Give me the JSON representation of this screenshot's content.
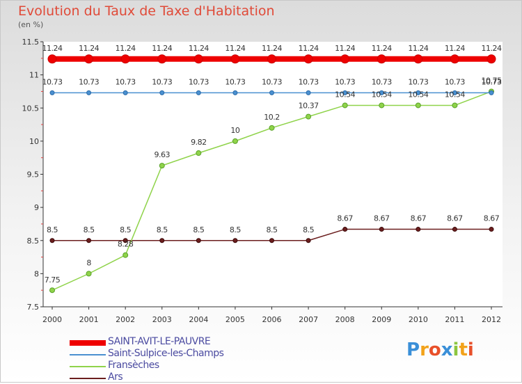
{
  "header": {
    "title": "Evolution du Taux de Taxe d'Habitation",
    "subtitle": "(en %)"
  },
  "brand": {
    "letters": [
      {
        "char": "P",
        "color": "#3a8fd8"
      },
      {
        "char": "r",
        "color": "#f2a21a"
      },
      {
        "char": "o",
        "color": "#e8502a"
      },
      {
        "char": "x",
        "color": "#3a8fd8"
      },
      {
        "char": "i",
        "color": "#8cc63f"
      },
      {
        "char": "t",
        "color": "#f2a21a"
      },
      {
        "char": "i",
        "color": "#e8502a"
      }
    ]
  },
  "chart_data": {
    "type": "line",
    "title": "Evolution du Taux de Taxe d'Habitation",
    "ylabel": "(en %)",
    "xlabel": "",
    "categories": [
      "2000",
      "2001",
      "2002",
      "2003",
      "2004",
      "2005",
      "2006",
      "2007",
      "2008",
      "2009",
      "2010",
      "2011",
      "2012"
    ],
    "ylim": [
      7.5,
      11.5
    ],
    "yticks": [
      "7.5",
      "8",
      "8.5",
      "9",
      "9.5",
      "10",
      "10.5",
      "11",
      "11.5"
    ],
    "grid": false,
    "legend_position": "bottom-left",
    "series": [
      {
        "name": "SAINT-AVIT-LE-PAUVRE",
        "color": "#ee0000",
        "values": [
          11.24,
          11.24,
          11.24,
          11.24,
          11.24,
          11.24,
          11.24,
          11.24,
          11.24,
          11.24,
          11.24,
          11.24,
          11.24
        ],
        "labels": [
          "11.24",
          "11.24",
          "11.24",
          "11.24",
          "11.24",
          "11.24",
          "11.24",
          "11.24",
          "11.24",
          "11.24",
          "11.24",
          "11.24",
          "11.24"
        ]
      },
      {
        "name": "Saint-Sulpice-les-Champs",
        "color": "#4a90d0",
        "values": [
          10.73,
          10.73,
          10.73,
          10.73,
          10.73,
          10.73,
          10.73,
          10.73,
          10.73,
          10.73,
          10.73,
          10.73,
          10.73
        ],
        "labels": [
          "10.73",
          "10.73",
          "10.73",
          "10.73",
          "10.73",
          "10.73",
          "10.73",
          "10.73",
          "10.73",
          "10.73",
          "10.73",
          "10.73",
          "10.73"
        ]
      },
      {
        "name": "Fransèches",
        "color": "#8fd34a",
        "values": [
          7.75,
          8,
          8.28,
          9.63,
          9.82,
          10,
          10.2,
          10.37,
          10.54,
          10.54,
          10.54,
          10.54,
          10.75
        ],
        "labels": [
          "7.75",
          "8",
          "8.28",
          "9.63",
          "9.82",
          "10",
          "10.2",
          "10.37",
          "10.54",
          "10.54",
          "10.54",
          "10.54",
          "10.75"
        ]
      },
      {
        "name": "Ars",
        "color": "#6b1e1e",
        "values": [
          8.5,
          8.5,
          8.5,
          8.5,
          8.5,
          8.5,
          8.5,
          8.5,
          8.67,
          8.67,
          8.67,
          8.67,
          8.67
        ],
        "labels": [
          "8.5",
          "8.5",
          "8.5",
          "8.5",
          "8.5",
          "8.5",
          "8.5",
          "8.5",
          "8.67",
          "8.67",
          "8.67",
          "8.67",
          "8.67"
        ]
      }
    ]
  }
}
